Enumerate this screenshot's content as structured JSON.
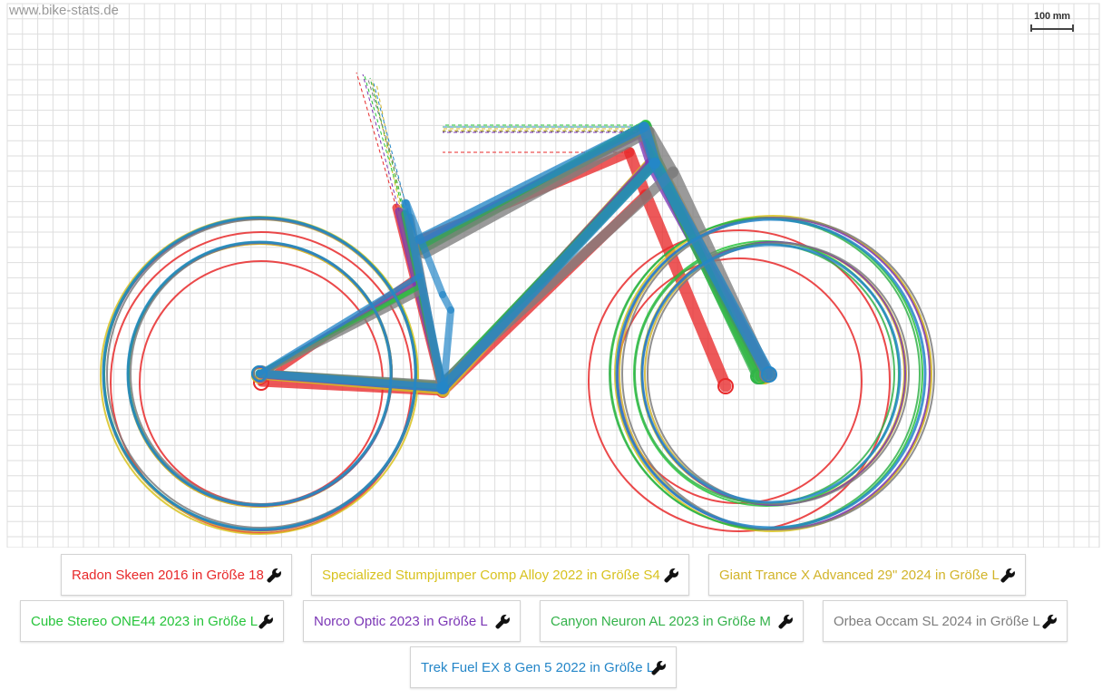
{
  "watermark": "www.bike-stats.de",
  "scale_bar": {
    "label": "100 mm"
  },
  "bikes": [
    {
      "id": "radon",
      "label": "Radon Skeen 2016 in Größe 18",
      "color": "#e8292a"
    },
    {
      "id": "specialized",
      "label": "Specialized Stumpjumper Comp Alloy 2022 in Größe S4",
      "color": "#d8c21f"
    },
    {
      "id": "giant",
      "label": "Giant Trance X Advanced 29\" 2024 in Größe L",
      "color": "#d2b42a"
    },
    {
      "id": "cube",
      "label": "Cube Stereo ONE44 2023 in Größe L",
      "color": "#27c43b"
    },
    {
      "id": "norco",
      "label": "Norco Optic 2023 in Größe L",
      "color": "#7b36b5"
    },
    {
      "id": "canyon",
      "label": "Canyon Neuron AL 2023 in Größe M",
      "color": "#33b24a"
    },
    {
      "id": "orbea",
      "label": "Orbea Occam SL 2024 in Größe L",
      "color": "#7d7d7d"
    },
    {
      "id": "trek",
      "label": "Trek Fuel EX 8 Gen 5 2022 in Größe L",
      "color": "#2486c8"
    }
  ],
  "icons": {
    "settings": "wrench-icon"
  }
}
